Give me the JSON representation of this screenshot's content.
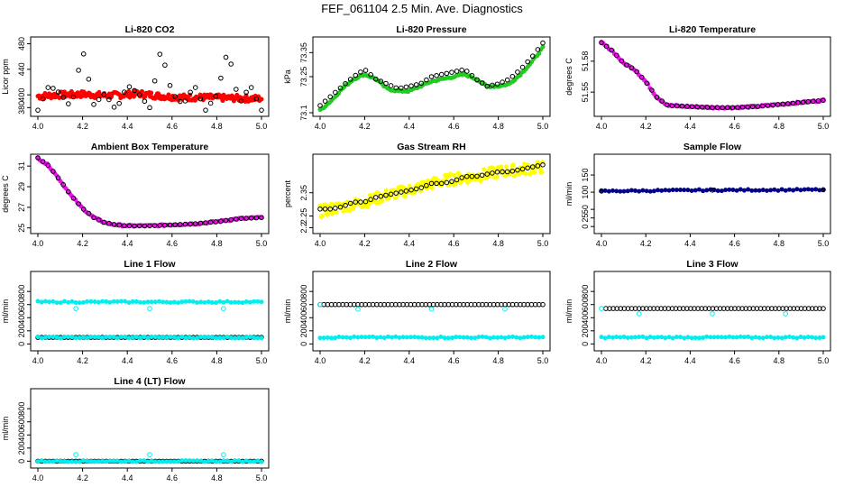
{
  "page_title": "FEF_061104  2.5 Min. Ave. Diagnostics",
  "colors": {
    "red": "#ff0000",
    "green": "#22cc22",
    "magenta": "#ee11ee",
    "yellow": "#ffff00",
    "navy": "#000088",
    "cyan": "#00eeee",
    "black": "#000000"
  },
  "chart_data": [
    {
      "type": "scatter",
      "title": "Li-820 CO2",
      "ylabel": "Licor ppm",
      "xlim": [
        4.0,
        5.0
      ],
      "ylim": [
        372,
        485
      ],
      "xticks": [
        4.0,
        4.2,
        4.4,
        4.6,
        4.8,
        5.0
      ],
      "yticks": [
        380,
        400,
        440,
        480
      ],
      "series": [
        {
          "name": "raw",
          "color": "red",
          "shape": "band",
          "x": [
            4.0,
            4.1,
            4.2,
            4.3,
            4.38,
            4.45,
            4.5,
            4.55,
            4.65,
            4.75,
            4.85,
            5.0
          ],
          "values": [
            398,
            400,
            401,
            399,
            400,
            402,
            400,
            398,
            396,
            396,
            395,
            394
          ],
          "spread": 5
        },
        {
          "name": "avg",
          "color": "black",
          "shape": "open",
          "x": [
            4.0,
            4.05,
            4.1,
            4.15,
            4.2,
            4.25,
            4.3,
            4.35,
            4.4,
            4.45,
            4.5,
            4.55,
            4.6,
            4.65,
            4.7,
            4.75,
            4.8,
            4.85,
            4.9,
            4.95,
            5.0
          ],
          "values": [
            376,
            415,
            402,
            380,
            472,
            385,
            402,
            376,
            415,
            402,
            380,
            472,
            402,
            385,
            415,
            376,
            400,
            472,
            385,
            415,
            376
          ]
        }
      ]
    },
    {
      "type": "scatter",
      "title": "Li-820 Pressure",
      "ylabel": "kPa",
      "xlim": [
        4.0,
        5.0
      ],
      "ylim": [
        73.1,
        73.4
      ],
      "xticks": [
        4.0,
        4.2,
        4.4,
        4.6,
        4.8,
        5.0
      ],
      "yticks": [
        73.1,
        73.25,
        73.35
      ],
      "series": [
        {
          "name": "raw",
          "color": "green",
          "shape": "filled",
          "x": [
            4.0,
            4.05,
            4.1,
            4.15,
            4.2,
            4.25,
            4.3,
            4.35,
            4.4,
            4.45,
            4.5,
            4.55,
            4.6,
            4.65,
            4.7,
            4.75,
            4.8,
            4.85,
            4.9,
            4.95,
            5.0
          ],
          "values": [
            73.11,
            73.15,
            73.2,
            73.24,
            73.26,
            73.24,
            73.2,
            73.19,
            73.19,
            73.21,
            73.23,
            73.24,
            73.25,
            73.26,
            73.24,
            73.21,
            73.21,
            73.22,
            73.26,
            73.31,
            73.37
          ]
        },
        {
          "name": "avg",
          "color": "black",
          "shape": "open",
          "x": [
            4.0,
            4.05,
            4.1,
            4.15,
            4.2,
            4.25,
            4.3,
            4.35,
            4.4,
            4.45,
            4.5,
            4.55,
            4.6,
            4.65,
            4.7,
            4.75,
            4.8,
            4.85,
            4.9,
            4.95,
            5.0
          ],
          "values": [
            73.13,
            73.17,
            73.21,
            73.25,
            73.28,
            73.24,
            73.22,
            73.2,
            73.21,
            73.22,
            73.25,
            73.26,
            73.27,
            73.28,
            73.24,
            73.21,
            73.22,
            73.24,
            73.28,
            73.33,
            73.39
          ]
        }
      ]
    },
    {
      "type": "scatter",
      "title": "Li-820 Temperature",
      "ylabel": "degrees C",
      "xlim": [
        4.0,
        5.0
      ],
      "ylim": [
        51.53,
        51.6
      ],
      "xticks": [
        4.0,
        4.2,
        4.4,
        4.6,
        4.8,
        5.0
      ],
      "yticks": [
        51.55,
        51.58
      ],
      "series": [
        {
          "name": "raw",
          "color": "magenta",
          "shape": "filled",
          "x": [
            4.0,
            4.05,
            4.1,
            4.15,
            4.2,
            4.25,
            4.3,
            4.4,
            4.5,
            4.6,
            4.7,
            4.8,
            4.9,
            5.0
          ],
          "values": [
            51.598,
            51.59,
            51.578,
            51.572,
            51.56,
            51.545,
            51.537,
            51.536,
            51.535,
            51.535,
            51.536,
            51.538,
            51.54,
            51.542
          ]
        },
        {
          "name": "avg",
          "color": "black",
          "shape": "open",
          "x": [
            4.0,
            4.05,
            4.1,
            4.15,
            4.2,
            4.25,
            4.3,
            4.4,
            4.5,
            4.6,
            4.7,
            4.8,
            4.9,
            5.0
          ],
          "values": [
            51.598,
            51.59,
            51.578,
            51.572,
            51.56,
            51.545,
            51.537,
            51.536,
            51.535,
            51.535,
            51.536,
            51.538,
            51.54,
            51.542
          ]
        }
      ]
    },
    {
      "type": "scatter",
      "title": "Ambient Box Temperature",
      "ylabel": "degrees C",
      "xlim": [
        4.0,
        5.0
      ],
      "ylim": [
        24.8,
        31.8
      ],
      "xticks": [
        4.0,
        4.2,
        4.4,
        4.6,
        4.8,
        5.0
      ],
      "yticks": [
        25,
        27,
        29,
        31
      ],
      "series": [
        {
          "name": "raw",
          "color": "magenta",
          "shape": "filled",
          "x": [
            4.0,
            4.05,
            4.1,
            4.15,
            4.2,
            4.25,
            4.3,
            4.35,
            4.4,
            4.5,
            4.6,
            4.7,
            4.8,
            4.9,
            5.0
          ],
          "values": [
            31.8,
            31.0,
            29.6,
            28.1,
            26.9,
            26.0,
            25.5,
            25.3,
            25.2,
            25.2,
            25.3,
            25.4,
            25.6,
            25.9,
            26.0
          ]
        },
        {
          "name": "avg",
          "color": "black",
          "shape": "open",
          "x": [
            4.0,
            4.05,
            4.1,
            4.15,
            4.2,
            4.25,
            4.3,
            4.35,
            4.4,
            4.5,
            4.6,
            4.7,
            4.8,
            4.9,
            5.0
          ],
          "values": [
            31.8,
            31.0,
            29.6,
            28.1,
            26.9,
            26.0,
            25.5,
            25.3,
            25.2,
            25.2,
            25.3,
            25.4,
            25.6,
            25.9,
            26.0
          ]
        }
      ]
    },
    {
      "type": "scatter",
      "title": "Gas Stream RH",
      "ylabel": "percent",
      "xlim": [
        4.0,
        5.0
      ],
      "ylim": [
        2.19,
        2.5
      ],
      "xticks": [
        4.0,
        4.2,
        4.4,
        4.6,
        4.8,
        5.0
      ],
      "yticks": [
        2.2,
        2.25,
        2.35
      ],
      "series": [
        {
          "name": "raw",
          "color": "yellow",
          "shape": "band",
          "x": [
            4.0,
            4.1,
            4.2,
            4.3,
            4.4,
            4.5,
            4.6,
            4.7,
            4.8,
            4.9,
            5.0
          ],
          "values": [
            2.27,
            2.29,
            2.31,
            2.34,
            2.36,
            2.39,
            2.41,
            2.42,
            2.44,
            2.45,
            2.46
          ],
          "spread": 0.025
        },
        {
          "name": "avg",
          "color": "black",
          "shape": "open",
          "x": [
            4.0,
            4.05,
            4.1,
            4.15,
            4.2,
            4.25,
            4.3,
            4.35,
            4.4,
            4.45,
            4.5,
            4.55,
            4.6,
            4.65,
            4.7,
            4.75,
            4.8,
            4.85,
            4.9,
            4.95,
            5.0
          ],
          "values": [
            2.28,
            2.28,
            2.29,
            2.31,
            2.31,
            2.33,
            2.34,
            2.35,
            2.36,
            2.37,
            2.39,
            2.39,
            2.4,
            2.42,
            2.42,
            2.43,
            2.44,
            2.44,
            2.45,
            2.46,
            2.47
          ]
        }
      ]
    },
    {
      "type": "scatter",
      "title": "Sample Flow",
      "ylabel": "ml/min",
      "xlim": [
        4.0,
        5.0
      ],
      "ylim": [
        -10,
        200
      ],
      "xticks": [
        4.0,
        4.2,
        4.4,
        4.6,
        4.8,
        5.0
      ],
      "yticks": [
        0,
        25,
        50,
        100,
        150
      ],
      "series": [
        {
          "name": "raw",
          "color": "navy",
          "shape": "filled",
          "x": [
            4.0,
            4.5,
            5.0
          ],
          "values": [
            103,
            106,
            107
          ]
        },
        {
          "name": "avg",
          "color": "black",
          "shape": "open",
          "x": [
            4.0,
            4.5,
            5.0
          ],
          "values": [
            103,
            106,
            107
          ]
        }
      ]
    },
    {
      "type": "scatter",
      "title": "Line 1 Flow",
      "ylabel": "ml/min",
      "xlim": [
        4.0,
        5.0
      ],
      "ylim": [
        -50,
        1050
      ],
      "xticks": [
        4.0,
        4.2,
        4.4,
        4.6,
        4.8,
        5.0
      ],
      "yticks": [
        0,
        200,
        400,
        600,
        800
      ],
      "series": [
        {
          "name": "raw",
          "color": "cyan",
          "shape": "filled",
          "x": [
            4.0,
            5.0
          ],
          "values": [
            640,
            640
          ]
        },
        {
          "name": "spikes",
          "color": "cyan",
          "shape": "open",
          "x": [
            4.17,
            4.5,
            4.83
          ],
          "values": [
            540,
            540,
            540
          ]
        },
        {
          "name": "avg",
          "color": "black",
          "shape": "open",
          "x": [
            4.0,
            5.0
          ],
          "values": [
            100,
            100
          ]
        },
        {
          "name": "raw2",
          "color": "cyan",
          "shape": "filled",
          "x": [
            4.0,
            5.0
          ],
          "values": [
            100,
            100
          ]
        }
      ]
    },
    {
      "type": "scatter",
      "title": "Line 2 Flow",
      "ylabel": "ml/min",
      "xlim": [
        4.0,
        5.0
      ],
      "ylim": [
        -50,
        1050
      ],
      "xticks": [
        4.0,
        4.2,
        4.4,
        4.6,
        4.8,
        5.0
      ],
      "yticks": [
        0,
        200,
        400,
        600,
        800
      ],
      "series": [
        {
          "name": "avg",
          "color": "black",
          "shape": "open",
          "x": [
            4.0,
            5.0
          ],
          "values": [
            600,
            600
          ]
        },
        {
          "name": "raw",
          "color": "cyan",
          "shape": "filled",
          "x": [
            4.0,
            5.0
          ],
          "values": [
            100,
            100
          ]
        },
        {
          "name": "spikes",
          "color": "cyan",
          "shape": "open",
          "x": [
            4.0,
            4.17,
            4.5,
            4.83
          ],
          "values": [
            600,
            530,
            530,
            530
          ]
        }
      ]
    },
    {
      "type": "scatter",
      "title": "Line 3 Flow",
      "ylabel": "ml/min",
      "xlim": [
        4.0,
        5.0
      ],
      "ylim": [
        -50,
        1050
      ],
      "xticks": [
        4.0,
        4.2,
        4.4,
        4.6,
        4.8,
        5.0
      ],
      "yticks": [
        0,
        200,
        400,
        600,
        800
      ],
      "series": [
        {
          "name": "avg",
          "color": "black",
          "shape": "open",
          "x": [
            4.02,
            5.0
          ],
          "values": [
            540,
            540
          ]
        },
        {
          "name": "raw",
          "color": "cyan",
          "shape": "filled",
          "x": [
            4.0,
            5.0
          ],
          "values": [
            100,
            100
          ]
        },
        {
          "name": "spikes",
          "color": "cyan",
          "shape": "open",
          "x": [
            4.0,
            4.17,
            4.5,
            4.83
          ],
          "values": [
            540,
            460,
            460,
            460
          ]
        }
      ]
    },
    {
      "type": "scatter",
      "title": "Line 4 (LT) Flow",
      "ylabel": "ml/min",
      "xlim": [
        4.0,
        5.0
      ],
      "ylim": [
        -50,
        1050
      ],
      "xticks": [
        4.0,
        4.2,
        4.4,
        4.6,
        4.8,
        5.0
      ],
      "yticks": [
        0,
        200,
        400,
        600,
        800
      ],
      "series": [
        {
          "name": "avg",
          "color": "black",
          "shape": "open",
          "x": [
            4.0,
            5.0
          ],
          "values": [
            0,
            0
          ]
        },
        {
          "name": "raw",
          "color": "cyan",
          "shape": "filled",
          "x": [
            4.0,
            5.0
          ],
          "values": [
            0,
            0
          ]
        },
        {
          "name": "spikes",
          "color": "cyan",
          "shape": "open",
          "x": [
            4.17,
            4.5,
            4.83
          ],
          "values": [
            100,
            100,
            100
          ]
        }
      ]
    }
  ]
}
